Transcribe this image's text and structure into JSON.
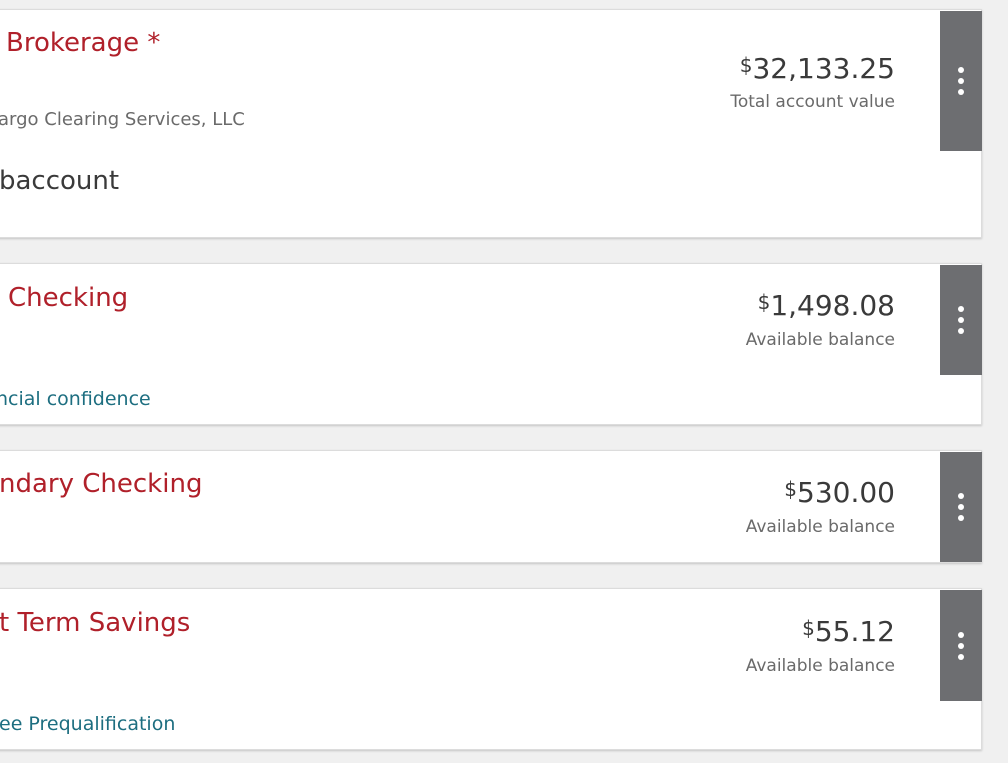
{
  "accounts": [
    {
      "title": "Brokerage *",
      "subtitle": "argo Clearing Services, LLC",
      "detail": "baccount",
      "currency": "$",
      "amount": "32,133.25",
      "amount_label": "Total account value"
    },
    {
      "title": "Checking",
      "link": "ncial confidence",
      "currency": "$",
      "amount": "1,498.08",
      "amount_label": "Available balance"
    },
    {
      "title": "ndary Checking",
      "currency": "$",
      "amount": "530.00",
      "amount_label": "Available balance"
    },
    {
      "title": "t Term Savings",
      "link": "ee Prequalification",
      "currency": "$",
      "amount": "55.12",
      "amount_label": "Available balance"
    }
  ]
}
